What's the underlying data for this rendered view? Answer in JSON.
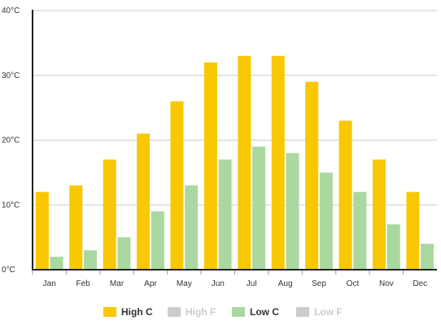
{
  "chart_data": {
    "type": "bar",
    "title": "",
    "xlabel": "",
    "ylabel": "",
    "categories": [
      "Jan",
      "Feb",
      "Mar",
      "Apr",
      "May",
      "Jun",
      "Jul",
      "Aug",
      "Sep",
      "Oct",
      "Nov",
      "Dec"
    ],
    "ylim": [
      0,
      40
    ],
    "yticks": [
      "0°C",
      "10°C",
      "20°C",
      "30°C",
      "40°C"
    ],
    "grid": true,
    "legend_position": "bottom",
    "series": [
      {
        "name": "High C",
        "color": "#f9c802",
        "visible": true,
        "values": [
          12,
          13,
          17,
          21,
          26,
          32,
          33,
          33,
          29,
          23,
          17,
          12
        ]
      },
      {
        "name": "Low C",
        "color": "#a9d8a0",
        "visible": true,
        "values": [
          2,
          3,
          5,
          9,
          13,
          17,
          19,
          18,
          15,
          12,
          7,
          4
        ]
      }
    ],
    "legend": [
      {
        "name": "High C",
        "color": "#f9c802",
        "text_color": "#333333",
        "enabled": true
      },
      {
        "name": "High F",
        "color": "#cccccc",
        "text_color": "#cccccc",
        "enabled": false
      },
      {
        "name": "Low C",
        "color": "#a9d8a0",
        "text_color": "#333333",
        "enabled": true
      },
      {
        "name": "Low F",
        "color": "#cccccc",
        "text_color": "#cccccc",
        "enabled": false
      }
    ]
  }
}
